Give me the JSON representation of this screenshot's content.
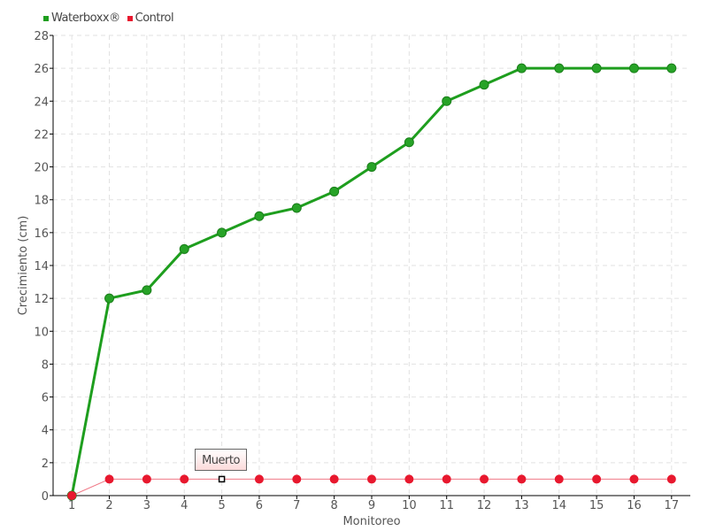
{
  "chart_data": {
    "type": "line",
    "xlabel": "Monitoreo",
    "ylabel": "Crecimiento (cm)",
    "categories": [
      "1",
      "2",
      "3",
      "4",
      "5",
      "6",
      "7",
      "8",
      "9",
      "10",
      "11",
      "12",
      "13",
      "14",
      "15",
      "16",
      "17"
    ],
    "ylim": [
      0,
      28
    ],
    "yticks": [
      0,
      2,
      4,
      6,
      8,
      10,
      12,
      14,
      16,
      18,
      20,
      22,
      24,
      26,
      28
    ],
    "grid": true,
    "legend": "top-left",
    "series": [
      {
        "name": "Waterboxx®",
        "color": "#1e9e1e",
        "values": [
          0,
          12,
          12.5,
          15,
          16,
          17,
          17.5,
          18.5,
          20,
          21.5,
          24,
          25,
          26,
          26,
          26,
          26,
          26
        ]
      },
      {
        "name": "Control",
        "color": "#e8182e",
        "values": [
          0,
          1,
          1,
          1,
          1,
          1,
          1,
          1,
          1,
          1,
          1,
          1,
          1,
          1,
          1,
          1,
          1
        ]
      }
    ],
    "annotations": [
      {
        "series": "Control",
        "category": "5",
        "text": "Muerto"
      }
    ]
  }
}
